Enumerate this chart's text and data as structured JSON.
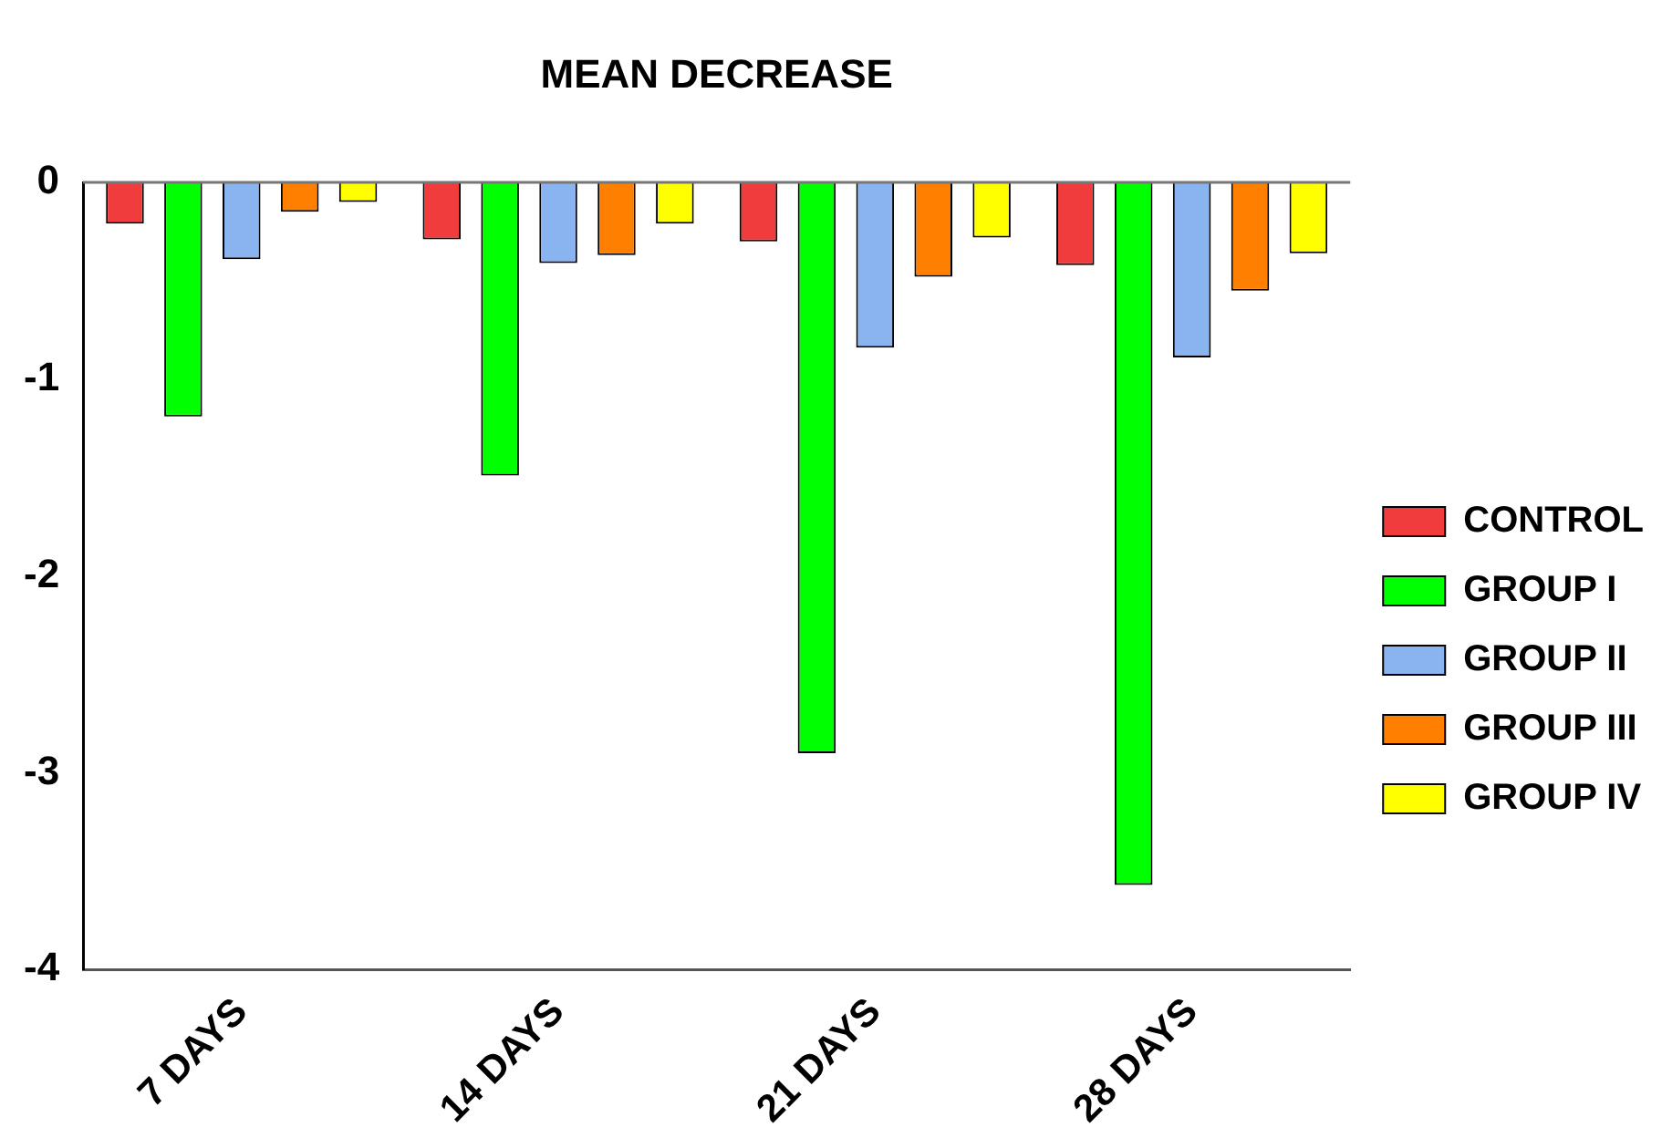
{
  "chart_data": {
    "type": "bar",
    "title": "MEAN DECREASE",
    "categories": [
      "7 DAYS",
      "14 DAYS",
      "21 DAYS",
      "28 DAYS"
    ],
    "series": [
      {
        "name": "CONTROL",
        "color": "#f03c3c",
        "values": [
          -0.21,
          -0.29,
          -0.3,
          -0.42
        ]
      },
      {
        "name": "GROUP I",
        "color": "#00ff00",
        "values": [
          -1.19,
          -1.49,
          -2.9,
          -3.57
        ]
      },
      {
        "name": "GROUP II",
        "color": "#8ab4f0",
        "values": [
          -0.39,
          -0.41,
          -0.84,
          -0.89
        ]
      },
      {
        "name": "GROUP III",
        "color": "#ff8000",
        "values": [
          -0.15,
          -0.37,
          -0.48,
          -0.55
        ]
      },
      {
        "name": "GROUP IV",
        "color": "#ffff00",
        "values": [
          -0.1,
          -0.21,
          -0.28,
          -0.36
        ]
      }
    ],
    "ylim": [
      -4,
      0
    ],
    "yticks": [
      -4,
      -3,
      -2,
      -1,
      0
    ],
    "grid": false,
    "legend": "right"
  }
}
